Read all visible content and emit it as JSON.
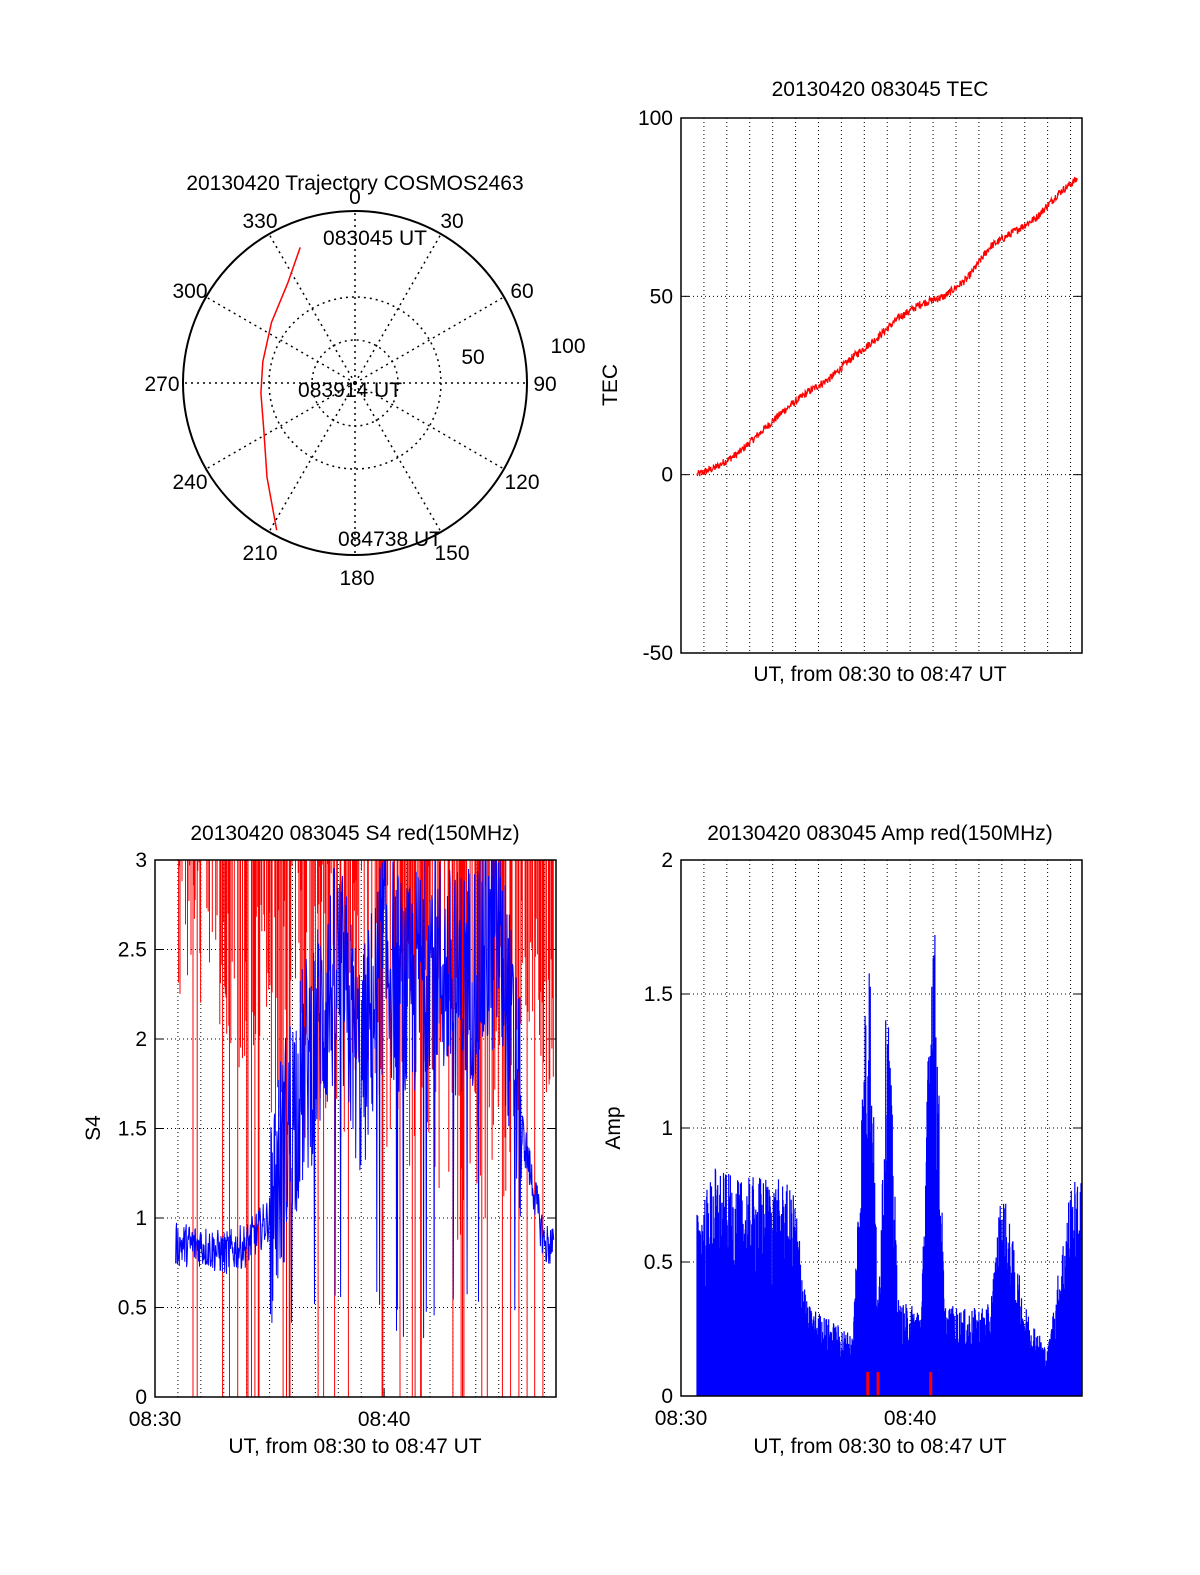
{
  "polar": {
    "title": "20130420 Trajectory COSMOS2463",
    "angle_labels": [
      "0",
      "30",
      "60",
      "90",
      "120",
      "150",
      "180",
      "210",
      "240",
      "270",
      "300",
      "330"
    ],
    "radial_labels": [
      "50",
      "100"
    ],
    "point_labels": {
      "start": "083045 UT",
      "mid": "083914 UT",
      "end": "084738 UT"
    },
    "trajectory_color": "#ff0000"
  },
  "chart_data": [
    {
      "type": "scatter",
      "title": "20130420 Trajectory COSMOS2463",
      "description_of_axes": "polar",
      "series": [
        {
          "name": "",
          "points": [
            {
              "azimuth": 338,
              "zenith": 85
            },
            {
              "azimuth": 326,
              "zenith": 70
            },
            {
              "azimuth": 306,
              "zenith": 60
            },
            {
              "azimuth": 283,
              "zenith": 55
            },
            {
              "azimuth": 264,
              "zenith": 55
            },
            {
              "azimuth": 242,
              "zenith": 60
            },
            {
              "azimuth": 223,
              "zenith": 75
            },
            {
              "azimuth": 208,
              "zenith": 97
            }
          ]
        }
      ],
      "rlim": [
        0,
        100
      ]
    },
    {
      "type": "line",
      "title": "20130420 083045 TEC",
      "xlabel": "UT, from 08:30 to 08:47 UT",
      "ylabel": "TEC",
      "ylim": [
        -50,
        100
      ],
      "yticks": [
        "-50",
        "0",
        "50",
        "100"
      ],
      "xlim_minutes": [
        0,
        17.5
      ],
      "series": [
        {
          "name": "",
          "color": "#ff0000",
          "x": [
            0.7,
            1.5,
            2.5,
            3.5,
            4.5,
            5.5,
            6.5,
            7.5,
            8.5,
            9.5,
            10.5,
            11.5,
            12.5,
            13.5,
            14.5,
            15.5,
            16.5,
            17.3
          ],
          "y": [
            0,
            2,
            6,
            12,
            18,
            23,
            27,
            33,
            38,
            44,
            48,
            50,
            55,
            64,
            68,
            72,
            79,
            83
          ]
        }
      ]
    },
    {
      "type": "line",
      "title": "20130420 083045 S4 red(150MHz)",
      "xlabel": "UT, from 08:30 to 08:47 UT",
      "ylabel": "S4",
      "ylim": [
        0,
        3
      ],
      "yticks": [
        "0",
        "0.5",
        "1",
        "1.5",
        "2",
        "2.5",
        "3"
      ],
      "xticks": [
        "08:30",
        "08:40"
      ],
      "xlim_minutes": [
        0,
        17.5
      ],
      "series": [
        {
          "name": "",
          "color": "#0000ff",
          "x": [
            1,
            2,
            3,
            4,
            5,
            6,
            7,
            8,
            9,
            10,
            11,
            12,
            13,
            14,
            15,
            16,
            17
          ],
          "y": [
            0.85,
            0.85,
            0.8,
            0.85,
            1.0,
            1.6,
            2.0,
            2.4,
            1.8,
            2.5,
            2.2,
            2.5,
            2.3,
            2.4,
            2.6,
            1.5,
            0.85
          ]
        },
        {
          "name": "",
          "color": "#ff0000",
          "x": [
            1,
            2,
            3,
            4,
            5,
            6,
            7,
            8,
            9,
            10,
            11,
            12,
            13,
            14,
            15,
            16,
            17
          ],
          "y": [
            3,
            3,
            2.8,
            2.5,
            3,
            3,
            3,
            3,
            3,
            3,
            2.8,
            3,
            2.4,
            2.5,
            2.5,
            3,
            2.5
          ]
        }
      ]
    },
    {
      "type": "area",
      "title": "20130420 083045 Amp red(150MHz)",
      "xlabel": "UT, from 08:30 to 08:47 UT",
      "ylabel": "Amp",
      "ylim": [
        0,
        2
      ],
      "yticks": [
        "0",
        "0.5",
        "1",
        "1.5",
        "2"
      ],
      "xticks": [
        "08:30",
        "08:40"
      ],
      "xlim_minutes": [
        0,
        17.5
      ],
      "series": [
        {
          "name": "",
          "color": "#0000ff",
          "x": [
            0.7,
            1.5,
            2.5,
            3.5,
            4.5,
            5.0,
            5.5,
            6.5,
            7.5,
            8.2,
            8.6,
            9.0,
            9.5,
            10.5,
            11.0,
            11.5,
            12.5,
            13.5,
            14.0,
            15.0,
            16.0,
            17.0,
            17.5
          ],
          "y": [
            0.6,
            0.75,
            0.7,
            0.72,
            0.7,
            0.65,
            0.3,
            0.25,
            0.2,
            1.6,
            0.3,
            1.4,
            0.3,
            0.3,
            1.75,
            0.3,
            0.28,
            0.3,
            0.7,
            0.3,
            0.15,
            0.7,
            0.7
          ]
        }
      ]
    }
  ],
  "tec": {
    "title": "20130420 083045 TEC",
    "xlabel": "UT, from 08:30 to 08:47 UT",
    "ylabel": "TEC"
  },
  "s4": {
    "title": "20130420 083045 S4 red(150MHz)",
    "xlabel": "UT, from 08:30 to 08:47 UT",
    "ylabel": "S4"
  },
  "amp": {
    "title": "20130420 083045 Amp red(150MHz)",
    "xlabel": "UT, from 08:30 to 08:47 UT",
    "ylabel": "Amp"
  },
  "colors": {
    "red": "#ff0000",
    "blue": "#0000ff"
  }
}
